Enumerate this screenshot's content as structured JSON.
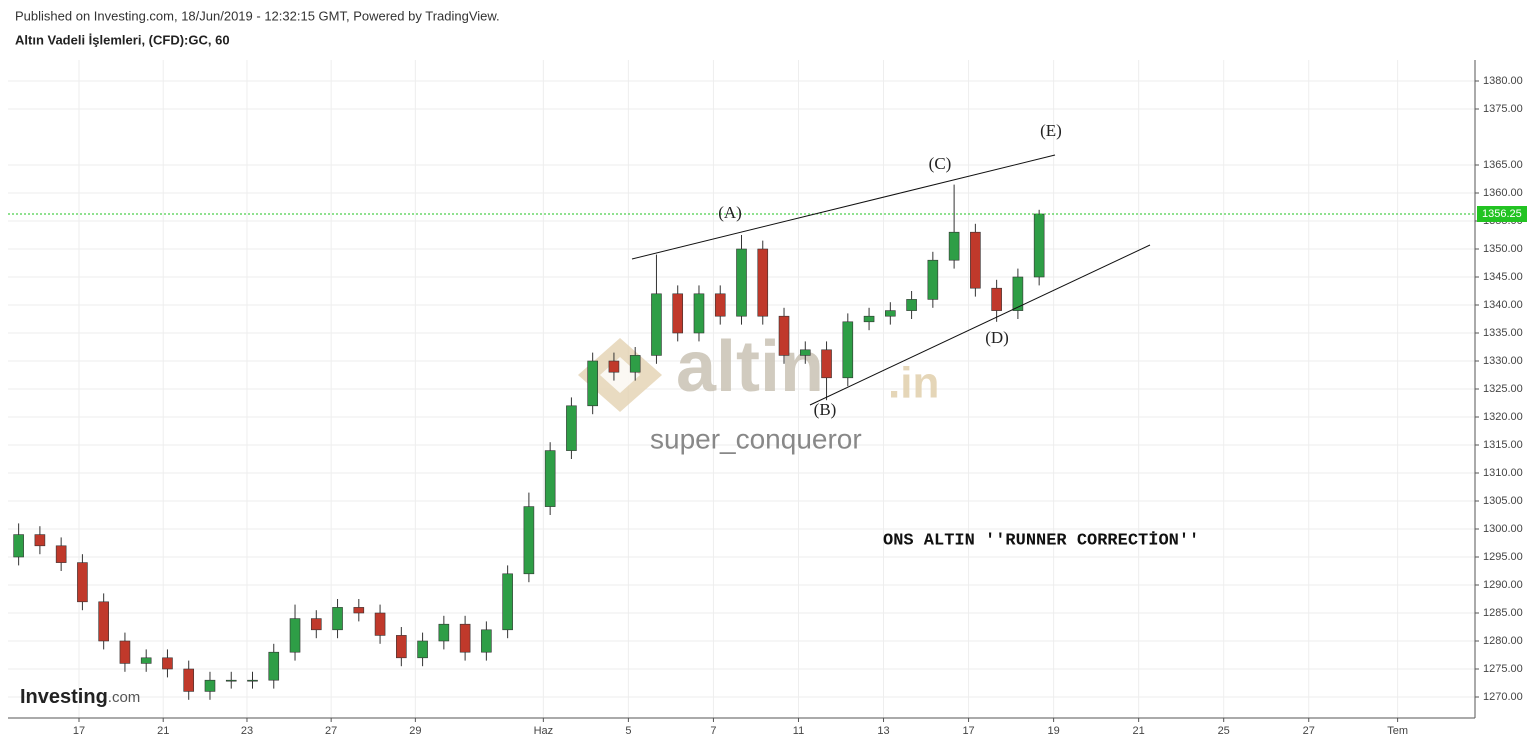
{
  "header": {
    "published": "Published on Investing.com, 18/Jun/2019 - 12:32:15 GMT, Powered by TradingView."
  },
  "watermark": {
    "brand": "altin",
    "suffix": ".in",
    "author": "super_conqueror"
  },
  "logo": {
    "name": "Investing",
    "suffix": ".com"
  },
  "chart_data": {
    "type": "candlestick",
    "title": "Altın Vadeli İşlemleri, (CFD):GC, 60",
    "x": [
      0.25,
      0.75,
      1.25,
      1.75,
      2.25,
      2.75,
      3.25,
      3.75,
      4.25,
      4.75,
      5.25,
      5.75,
      6.25,
      6.75,
      7.25,
      7.75,
      8.25,
      8.75,
      9.25,
      9.75,
      10.25,
      10.75,
      11.25,
      11.75,
      12.25,
      12.75,
      13.25,
      13.75,
      14.25,
      14.75,
      15.25,
      15.75,
      16.25,
      16.75,
      17.25,
      17.75,
      18.25,
      18.75,
      19.25,
      19.75,
      20.25,
      20.75,
      21.25,
      21.75,
      22.25,
      22.75,
      23.25,
      23.75,
      24.25
    ],
    "open": [
      1295,
      1299,
      1297,
      1294,
      1287,
      1280,
      1276,
      1277,
      1275,
      1271,
      1273,
      1273,
      1273,
      1278,
      1284,
      1282,
      1286,
      1285,
      1281,
      1277,
      1280,
      1283,
      1278,
      1282,
      1292,
      1304,
      1314,
      1322,
      1330,
      1328,
      1331,
      1342,
      1335,
      1342,
      1338,
      1350,
      1338,
      1331,
      1332,
      1327,
      1337,
      1338,
      1339,
      1341,
      1348,
      1353,
      1343,
      1339,
      1345
    ],
    "high": [
      1301,
      1300.5,
      1298.5,
      1295.5,
      1288.5,
      1281.5,
      1278.5,
      1278.5,
      1276.5,
      1274.5,
      1274.5,
      1274.5,
      1279.5,
      1286.5,
      1285.5,
      1287.5,
      1287.5,
      1286.5,
      1282.5,
      1281.5,
      1284.5,
      1284.5,
      1283.5,
      1293.5,
      1306.5,
      1315.5,
      1323.5,
      1331.5,
      1331.5,
      1332.5,
      1349,
      1343.5,
      1343.5,
      1343.5,
      1352.5,
      1351.5,
      1339.5,
      1333.5,
      1333.5,
      1338.5,
      1339.5,
      1340.5,
      1342.5,
      1349.5,
      1361.5,
      1354.5,
      1344.5,
      1346.5,
      1357
    ],
    "low": [
      1293.5,
      1295.5,
      1292.5,
      1285.5,
      1278.5,
      1274.5,
      1274.5,
      1273.5,
      1269.5,
      1269.5,
      1271.5,
      1271.5,
      1271.5,
      1276.5,
      1280.5,
      1280.5,
      1283.5,
      1279.5,
      1275.5,
      1275.5,
      1278.5,
      1276.5,
      1276.5,
      1280.5,
      1290.5,
      1302.5,
      1312.5,
      1320.5,
      1326.5,
      1326.5,
      1329.5,
      1333.5,
      1333.5,
      1336.5,
      1336.5,
      1336.5,
      1329.5,
      1329.5,
      1323,
      1325.5,
      1335.5,
      1336.5,
      1337.5,
      1339.5,
      1346.5,
      1341.5,
      1337,
      1337.5,
      1343.5
    ],
    "close": [
      1299,
      1297,
      1294,
      1287,
      1280,
      1276,
      1277,
      1275,
      1271,
      1273,
      1273,
      1273,
      1278,
      1284,
      1282,
      1286,
      1285,
      1281,
      1277,
      1280,
      1283,
      1278,
      1282,
      1292,
      1304,
      1314,
      1322,
      1330,
      1328,
      1331,
      1342,
      1335,
      1342,
      1338,
      1350,
      1338,
      1331,
      1332,
      1327,
      1337,
      1338,
      1339,
      1341,
      1348,
      1353,
      1343,
      1339,
      1345,
      1356.25
    ],
    "up_color": "#2e9e46",
    "down_color": "#c0392b",
    "xlim": [
      0,
      34.5
    ],
    "ylim": [
      1266.25,
      1383.75
    ],
    "xticks": [
      {
        "value": 1.67,
        "label": "17"
      },
      {
        "value": 3.65,
        "label": "21"
      },
      {
        "value": 5.62,
        "label": "23"
      },
      {
        "value": 7.6,
        "label": "27"
      },
      {
        "value": 9.58,
        "label": "29"
      },
      {
        "value": 12.59,
        "label": "Haz"
      },
      {
        "value": 14.59,
        "label": "5"
      },
      {
        "value": 16.59,
        "label": "7"
      },
      {
        "value": 18.59,
        "label": "11"
      },
      {
        "value": 20.59,
        "label": "13"
      },
      {
        "value": 22.59,
        "label": "17"
      },
      {
        "value": 24.59,
        "label": "19"
      },
      {
        "value": 26.59,
        "label": "21"
      },
      {
        "value": 28.59,
        "label": "25"
      },
      {
        "value": 30.59,
        "label": "27"
      },
      {
        "value": 32.68,
        "label": "Tem"
      }
    ],
    "yticks": [
      {
        "value": 1270,
        "label": "1270.00"
      },
      {
        "value": 1275,
        "label": "1275.00"
      },
      {
        "value": 1280,
        "label": "1280.00"
      },
      {
        "value": 1285,
        "label": "1285.00"
      },
      {
        "value": 1290,
        "label": "1290.00"
      },
      {
        "value": 1295,
        "label": "1295.00"
      },
      {
        "value": 1300,
        "label": "1300.00"
      },
      {
        "value": 1305,
        "label": "1305.00"
      },
      {
        "value": 1310,
        "label": "1310.00"
      },
      {
        "value": 1315,
        "label": "1315.00"
      },
      {
        "value": 1320,
        "label": "1320.00"
      },
      {
        "value": 1325,
        "label": "1325.00"
      },
      {
        "value": 1330,
        "label": "1330.00"
      },
      {
        "value": 1335,
        "label": "1335.00"
      },
      {
        "value": 1340,
        "label": "1340.00"
      },
      {
        "value": 1345,
        "label": "1345.00"
      },
      {
        "value": 1350,
        "label": "1350.00"
      },
      {
        "value": 1355,
        "label": "1355.00"
      },
      {
        "value": 1360,
        "label": "1360.00"
      },
      {
        "value": 1365,
        "label": "1365.00"
      },
      {
        "value": 1375,
        "label": "1375.00"
      },
      {
        "value": 1380,
        "label": "1380.00"
      }
    ],
    "grid": true,
    "last_price": 1356.25,
    "last_price_color": "#22c322",
    "wave_labels": [
      "(A)",
      "(B)",
      "(C)",
      "(D)",
      "(E)"
    ],
    "annotation": "ONS ALTIN ''RUNNER CORRECTİON''"
  }
}
